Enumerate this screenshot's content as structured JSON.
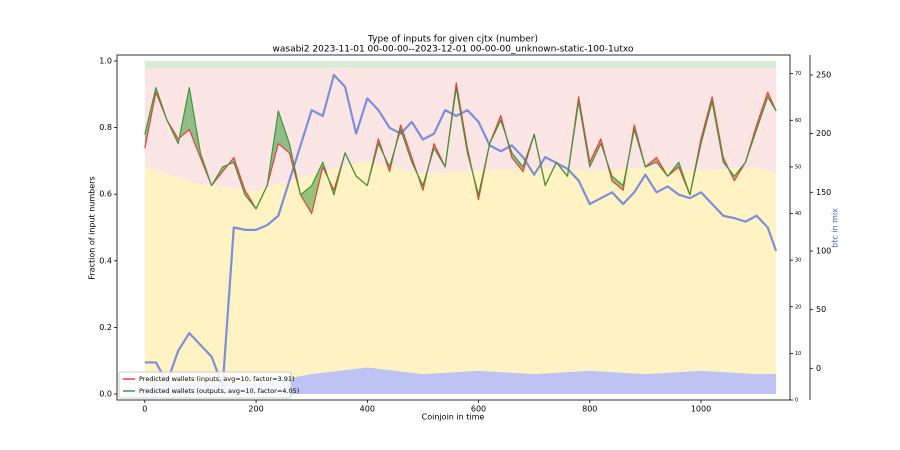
{
  "chart_data": {
    "type": "line",
    "title": "Type of inputs for given cjtx (number)",
    "subtitle": "wasabi2 2023-11-01 00-00-00--2023-12-01 00-00-00_unknown-static-100-1utxo",
    "xlabel": "Coinjoin in time",
    "ylabel": "Fraction of input numbers",
    "y3label": "btc in mix",
    "xlim": [
      -50,
      1160
    ],
    "xticks": [
      0,
      200,
      400,
      600,
      800,
      1000
    ],
    "ylim": [
      -0.018,
      1.018
    ],
    "yticks": [
      {
        "value": 0,
        "label": "0.0"
      },
      {
        "value": 0.2,
        "label": "0.2"
      },
      {
        "value": 0.4,
        "label": "0.4"
      },
      {
        "value": 0.6,
        "label": "0.6"
      },
      {
        "value": 0.8,
        "label": "0.8"
      },
      {
        "value": 1,
        "label": "1.0"
      }
    ],
    "y2lim": [
      0,
      74
    ],
    "y2ticks": [
      0,
      10,
      20,
      30,
      40,
      50,
      60,
      70
    ],
    "y2color": "#d62728",
    "y3lim": [
      -27,
      267
    ],
    "y3ticks": [
      0,
      50,
      100,
      150,
      200,
      250
    ],
    "y3color": "#4169e1",
    "legend": "lower left",
    "x": [
      0,
      20,
      40,
      60,
      80,
      100,
      120,
      140,
      160,
      180,
      200,
      220,
      240,
      260,
      280,
      300,
      320,
      340,
      360,
      380,
      400,
      420,
      440,
      460,
      480,
      500,
      520,
      540,
      560,
      580,
      600,
      620,
      640,
      660,
      680,
      700,
      720,
      740,
      760,
      780,
      800,
      820,
      840,
      860,
      880,
      900,
      920,
      940,
      960,
      980,
      1000,
      1020,
      1040,
      1060,
      1080,
      1100,
      1120,
      1135
    ],
    "series": [
      {
        "name": "Predicted wallets (inputs, avg=10, factor=3.91)",
        "color": "#e8403a",
        "axis": "y2",
        "values": [
          54,
          66,
          60,
          56,
          58,
          52,
          46,
          49,
          52,
          45,
          41,
          46,
          55,
          53,
          44,
          40,
          50,
          45,
          53,
          48,
          46,
          56,
          49,
          59,
          52,
          45,
          55,
          50,
          68,
          54,
          43,
          55,
          61,
          52,
          49,
          57,
          46,
          51,
          48,
          65,
          51,
          56,
          47,
          45,
          59,
          50,
          52,
          48,
          50,
          44,
          56,
          65,
          52,
          47,
          51,
          59,
          66,
          62
        ]
      },
      {
        "name": "Predicted wallets (outputs, avg=10, factor=4.05)",
        "color": "#3a9a3a",
        "axis": "y2",
        "values": [
          57,
          67,
          60,
          55,
          67,
          53,
          46,
          50,
          51,
          44,
          41,
          46,
          62,
          55,
          44,
          46,
          51,
          44,
          53,
          48,
          46,
          55,
          50,
          58,
          51,
          46,
          54,
          50,
          67,
          53,
          44,
          55,
          60,
          53,
          50,
          57,
          46,
          51,
          48,
          64,
          50,
          55,
          48,
          46,
          58,
          50,
          51,
          48,
          51,
          44,
          55,
          64,
          51,
          48,
          51,
          58,
          65,
          62
        ]
      }
    ],
    "btc": {
      "color": "#7b8fdb",
      "axis": "y3",
      "values": [
        5,
        5,
        -12,
        15,
        30,
        20,
        10,
        -15,
        120,
        118,
        118,
        122,
        130,
        160,
        190,
        220,
        215,
        250,
        240,
        200,
        230,
        220,
        205,
        200,
        210,
        195,
        200,
        220,
        215,
        220,
        210,
        190,
        185,
        190,
        180,
        165,
        180,
        175,
        170,
        160,
        140,
        145,
        150,
        140,
        150,
        165,
        150,
        155,
        148,
        145,
        150,
        140,
        130,
        128,
        125,
        130,
        120,
        100
      ]
    },
    "areas": {
      "x": [
        0,
        100,
        200,
        300,
        400,
        500,
        600,
        700,
        800,
        900,
        1000,
        1100,
        1135
      ],
      "series": [
        {
          "color": "#b3b9f2",
          "values": [
            0.03,
            0.03,
            0.03,
            0.06,
            0.08,
            0.06,
            0.07,
            0.06,
            0.07,
            0.06,
            0.07,
            0.06,
            0.06
          ]
        },
        {
          "color": "#fff1b8",
          "values": [
            0.65,
            0.6,
            0.58,
            0.6,
            0.62,
            0.6,
            0.6,
            0.62,
            0.6,
            0.62,
            0.6,
            0.62,
            0.6
          ]
        },
        {
          "color": "#fbe0e0",
          "values": [
            0.3,
            0.35,
            0.37,
            0.32,
            0.28,
            0.32,
            0.31,
            0.3,
            0.31,
            0.3,
            0.31,
            0.3,
            0.32
          ]
        },
        {
          "color": "#cfe9cf",
          "values": [
            0.02,
            0.02,
            0.02,
            0.02,
            0.02,
            0.02,
            0.02,
            0.02,
            0.02,
            0.02,
            0.02,
            0.02,
            0.02
          ]
        }
      ]
    }
  }
}
